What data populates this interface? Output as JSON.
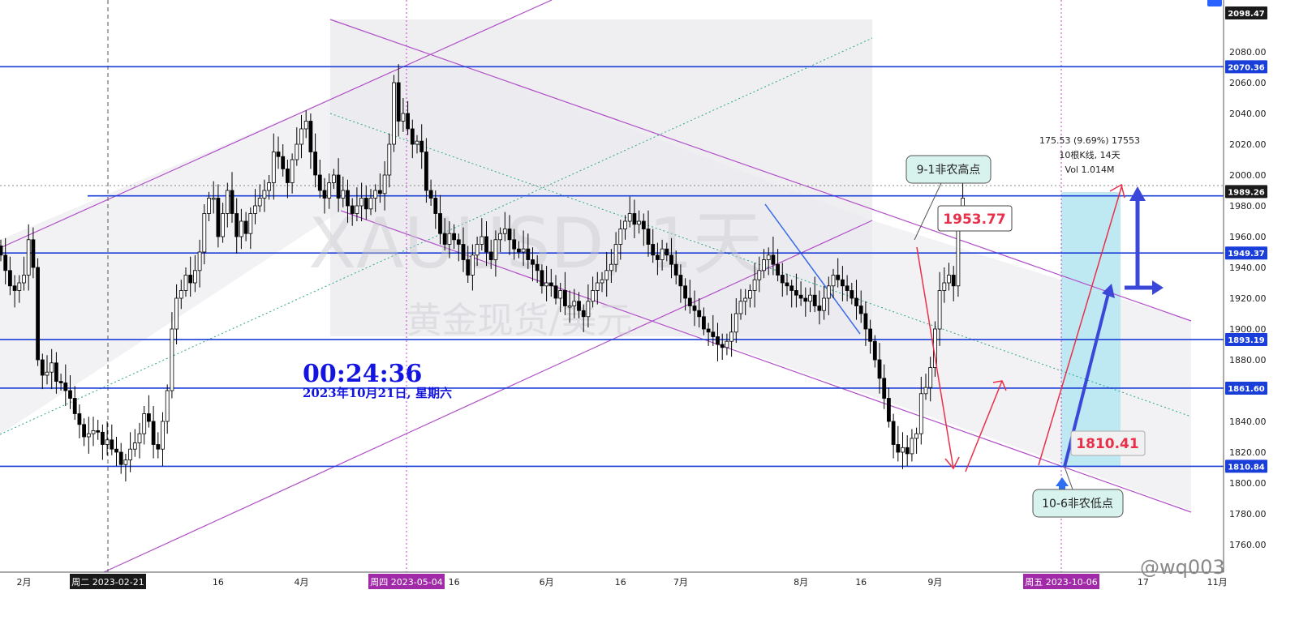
{
  "watermark": {
    "symbol": "XAUUSD, 1天",
    "name": "黄金现货/美元"
  },
  "clock": {
    "time": "00:24:36",
    "date": "2023年10月21日, 星期六"
  },
  "annotations": {
    "high_callout": "9-1非农高点",
    "low_callout": "10-6非农低点",
    "high_price": "1953.77",
    "low_price": "1810.41",
    "measure_line1": "175.53 (9.69%) 17553",
    "measure_line2": "10根K线, 14天",
    "measure_line3": "Vol 1.014M"
  },
  "signature": "@wq003",
  "colors": {
    "hline": "#1a3fd8",
    "channel": "#b04fc8",
    "up_candle": "#ffffff",
    "down_candle": "#000000",
    "red_arrow": "#e8304a",
    "blue_arrow": "#3a47d8",
    "zone_fill": "#bfe9f2",
    "shade": "#e9e9ee"
  },
  "chart_data": {
    "type": "candlestick",
    "symbol": "XAUUSD",
    "interval": "1天",
    "ylim": [
      1750,
      2100
    ],
    "y_ticks": [
      1760,
      1780,
      1800,
      1820,
      1840,
      1860,
      1880,
      1900,
      1920,
      1940,
      1960,
      1980,
      2000,
      2020,
      2040,
      2060,
      2080
    ],
    "y_tick_labels": [
      "1760.00",
      "1780.00",
      "1800.00",
      "1820.00",
      "1840.00",
      "1860.00",
      "1880.00",
      "1900.00",
      "1920.00",
      "1940.00",
      "1960.00",
      "1980.00",
      "2000.00",
      "2020.00",
      "2040.00",
      "2060.00",
      "2080.00"
    ],
    "price_tags": [
      {
        "value": 2098.47,
        "label": "2098.47",
        "bg": "#1a1a1a"
      },
      {
        "value": 2070.36,
        "label": "2070.36",
        "bg": "#1a3fd8"
      },
      {
        "value": 1989.26,
        "label": "1989.26",
        "bg": "#1a1a1a"
      },
      {
        "value": 1949.37,
        "label": "1949.37",
        "bg": "#1a3fd8"
      },
      {
        "value": 1893.19,
        "label": "1893.19",
        "bg": "#1a3fd8"
      },
      {
        "value": 1861.6,
        "label": "1861.60",
        "bg": "#1a3fd8"
      },
      {
        "value": 1810.84,
        "label": "1810.84",
        "bg": "#1a3fd8"
      }
    ],
    "horizontal_lines": [
      2070.36,
      1986.5,
      1949.37,
      1893.19,
      1861.6,
      1810.84
    ],
    "x_labels": [
      {
        "label": "2月",
        "bar": 5
      },
      {
        "label": "16",
        "bar": 47
      },
      {
        "label": "4月",
        "bar": 65
      },
      {
        "label": "16",
        "bar": 98
      },
      {
        "label": "6月",
        "bar": 118
      },
      {
        "label": "16",
        "bar": 134
      },
      {
        "label": "7月",
        "bar": 147
      },
      {
        "label": "8月",
        "bar": 173
      },
      {
        "label": "16",
        "bar": 186
      },
      {
        "label": "9月",
        "bar": 202
      },
      {
        "label": "17",
        "bar": 247
      },
      {
        "label": "11月",
        "bar": 263
      }
    ],
    "date_tags": [
      {
        "label": "周二 2023-02-21",
        "bar": 23
      },
      {
        "label": "周四 2023-05-04",
        "bar": 92
      },
      {
        "label": "周五 2023-10-06",
        "bar": 240
      }
    ],
    "closes": [
      1948,
      1938,
      1928,
      1925,
      1930,
      1935,
      1958,
      1940,
      1880,
      1870,
      1872,
      1878,
      1866,
      1865,
      1860,
      1855,
      1845,
      1838,
      1830,
      1832,
      1834,
      1833,
      1825,
      1828,
      1822,
      1820,
      1812,
      1815,
      1822,
      1826,
      1832,
      1845,
      1840,
      1825,
      1822,
      1840,
      1860,
      1900,
      1920,
      1925,
      1935,
      1930,
      1938,
      1950,
      1975,
      1985,
      1985,
      1960,
      1975,
      1990,
      1975,
      1960,
      1970,
      1962,
      1975,
      1980,
      1985,
      1990,
      1995,
      2015,
      2012,
      2004,
      1995,
      2010,
      2020,
      2030,
      2035,
      2015,
      2000,
      1990,
      1985,
      1995,
      2000,
      1985,
      1990,
      1980,
      1975,
      1980,
      1985,
      1978,
      1985,
      1990,
      1988,
      2000,
      2020,
      2060,
      2035,
      2040,
      2030,
      2020,
      2022,
      2015,
      1990,
      1985,
      1975,
      1962,
      1955,
      1962,
      1958,
      1955,
      1945,
      1935,
      1948,
      1955,
      1960,
      1950,
      1945,
      1958,
      1962,
      1965,
      1958,
      1952,
      1950,
      1952,
      1945,
      1942,
      1938,
      1928,
      1930,
      1928,
      1920,
      1925,
      1915,
      1915,
      1918,
      1912,
      1908,
      1918,
      1925,
      1930,
      1932,
      1938,
      1942,
      1955,
      1965,
      1970,
      1975,
      1968,
      1970,
      1965,
      1955,
      1948,
      1945,
      1952,
      1948,
      1942,
      1935,
      1928,
      1920,
      1915,
      1912,
      1908,
      1900,
      1898,
      1895,
      1890,
      1888,
      1892,
      1898,
      1910,
      1918,
      1920,
      1925,
      1932,
      1938,
      1945,
      1948,
      1942,
      1935,
      1930,
      1928,
      1925,
      1922,
      1920,
      1918,
      1922,
      1915,
      1912,
      1920,
      1928,
      1935,
      1932,
      1928,
      1925,
      1920,
      1915,
      1910,
      1900,
      1892,
      1880,
      1868,
      1855,
      1840,
      1825,
      1820,
      1823,
      1819,
      1829,
      1832,
      1858,
      1862,
      1875,
      1900,
      1925,
      1930,
      1935,
      1928,
      1975,
      1985
    ]
  }
}
